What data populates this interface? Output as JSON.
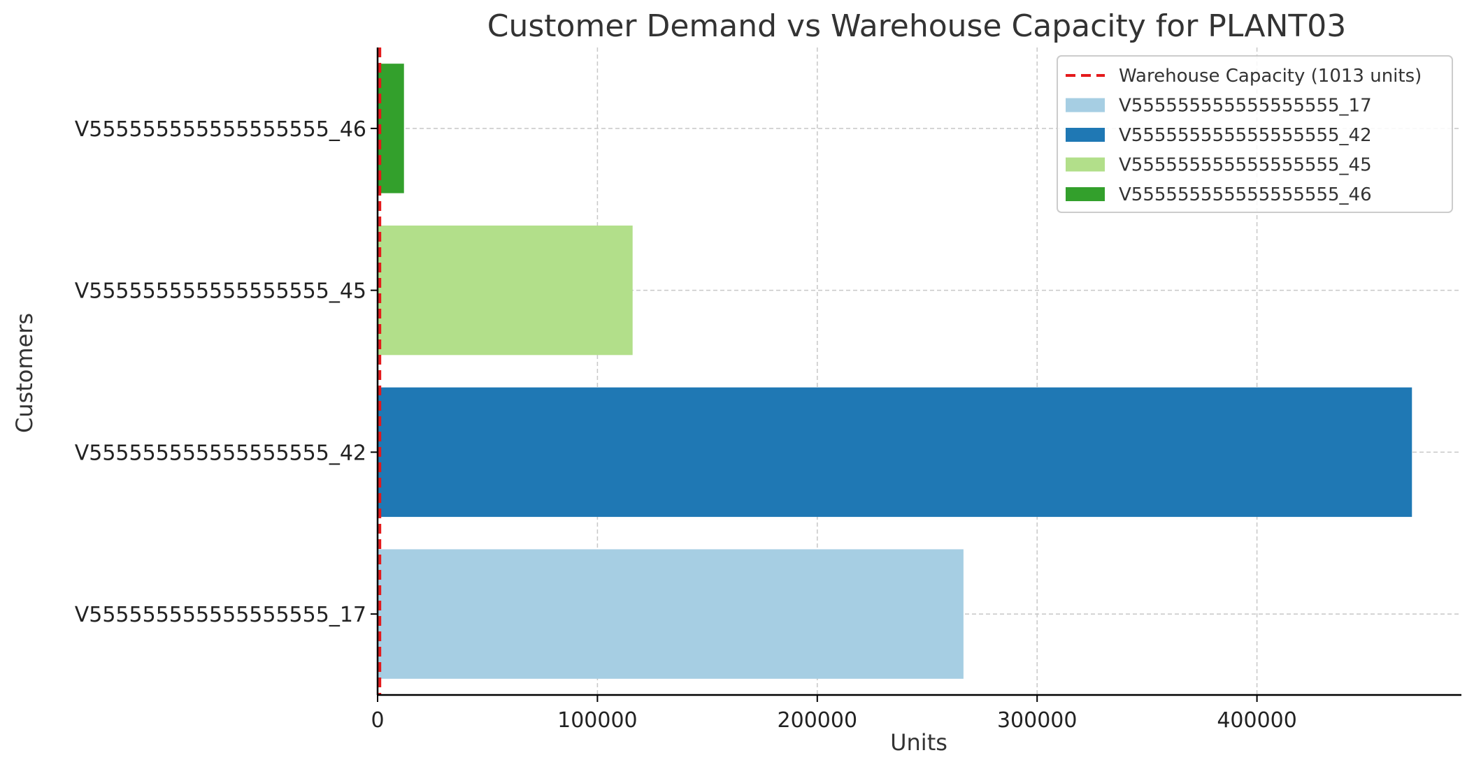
{
  "chart_data": {
    "type": "bar",
    "orientation": "horizontal",
    "title": "Customer Demand vs Warehouse Capacity for PLANT03",
    "xlabel": "Units",
    "ylabel": "Customers",
    "xlim": [
      0,
      493000
    ],
    "xticks": [
      0,
      100000,
      200000,
      300000,
      400000
    ],
    "grid": true,
    "legend_position": "top-right",
    "categories": [
      "V555555555555555555_17",
      "V555555555555555555_42",
      "V555555555555555555_45",
      "V555555555555555555_46"
    ],
    "values": [
      266500,
      470500,
      116000,
      12000
    ],
    "colors": [
      "#a6cee3",
      "#1f78b4",
      "#b2df8a",
      "#33a02c"
    ],
    "reference_line": {
      "label": "Warehouse Capacity (1013 units)",
      "value": 1013,
      "color": "#e41a1c",
      "style": "dashed"
    }
  }
}
